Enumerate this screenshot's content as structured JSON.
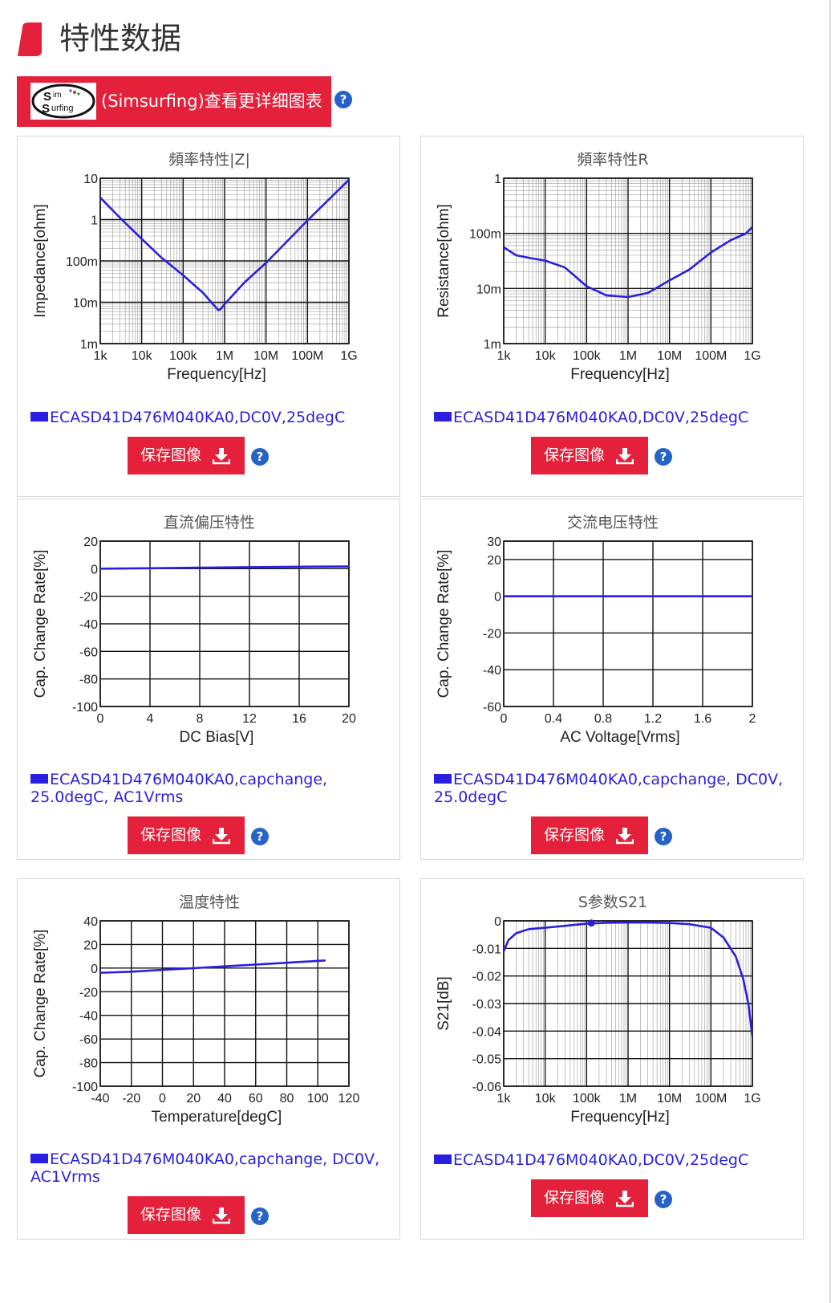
{
  "page": {
    "title": "特性数据",
    "colors": {
      "accent": "#e4203a",
      "series": "#2a1fe0",
      "help": "#2563c9"
    }
  },
  "simsurfing": {
    "label": "(Simsurfing)查看更详细图表",
    "logo_text": "Sim Surfing",
    "help_icon": "question-circle-icon"
  },
  "buttons": {
    "save_label": "保存图像",
    "save_icon": "download-icon",
    "help_text": "?"
  },
  "panels": [
    {
      "title": "頻率特性|Z|",
      "legend": "ECASD41D476M040KA0,DC0V,25degC"
    },
    {
      "title": "頻率特性R",
      "legend": "ECASD41D476M040KA0,DC0V,25degC"
    },
    {
      "title": "直流偏压特性",
      "legend_line1": "ECASD41D476M040KA0,capchange,",
      "legend_line2": "25.0degC, AC1Vrms"
    },
    {
      "title": "交流电压特性",
      "legend_line1": "ECASD41D476M040KA0,capchange, DC0V,",
      "legend_line2": "25.0degC"
    },
    {
      "title": "温度特性",
      "legend_line1": "ECASD41D476M040KA0,capchange, DC0V,",
      "legend_line2": "AC1Vrms"
    },
    {
      "title": "S参数S21",
      "legend": "ECASD41D476M040KA0,DC0V,25degC"
    }
  ],
  "chart_data": [
    {
      "type": "line",
      "title": "頻率特性|Z|",
      "xlabel": "Frequency[Hz]",
      "ylabel": "Impedance[ohm]",
      "xscale": "log",
      "yscale": "log",
      "xlim": [
        1000,
        1000000000
      ],
      "ylim": [
        0.001,
        10
      ],
      "xticks": [
        {
          "v": 1000,
          "l": "1k"
        },
        {
          "v": 10000,
          "l": "10k"
        },
        {
          "v": 100000,
          "l": "100k"
        },
        {
          "v": 1000000,
          "l": "1M"
        },
        {
          "v": 10000000,
          "l": "10M"
        },
        {
          "v": 100000000,
          "l": "100M"
        },
        {
          "v": 1000000000,
          "l": "1G"
        }
      ],
      "yticks": [
        {
          "v": 0.001,
          "l": "1m"
        },
        {
          "v": 0.01,
          "l": "10m"
        },
        {
          "v": 0.1,
          "l": "100m"
        },
        {
          "v": 1,
          "l": "1"
        },
        {
          "v": 10,
          "l": "10"
        }
      ],
      "grid": true,
      "minor_grid": true,
      "series": [
        {
          "name": "ECASD41D476M040KA0,DC0V,25degC",
          "x": [
            1000,
            3000,
            10000,
            30000,
            100000,
            300000,
            500000,
            700000,
            800000,
            1000000,
            3000000,
            10000000,
            100000000,
            1000000000
          ],
          "y": [
            3.4,
            1.1,
            0.34,
            0.12,
            0.045,
            0.017,
            0.0095,
            0.0065,
            0.0068,
            0.009,
            0.03,
            0.09,
            0.95,
            9.2
          ]
        }
      ]
    },
    {
      "type": "line",
      "title": "頻率特性R",
      "xlabel": "Frequency[Hz]",
      "ylabel": "Resistance[ohm]",
      "xscale": "log",
      "yscale": "log",
      "xlim": [
        1000,
        1000000000
      ],
      "ylim": [
        0.001,
        1
      ],
      "xticks": [
        {
          "v": 1000,
          "l": "1k"
        },
        {
          "v": 10000,
          "l": "10k"
        },
        {
          "v": 100000,
          "l": "100k"
        },
        {
          "v": 1000000,
          "l": "1M"
        },
        {
          "v": 10000000,
          "l": "10M"
        },
        {
          "v": 100000000,
          "l": "100M"
        },
        {
          "v": 1000000000,
          "l": "1G"
        }
      ],
      "yticks": [
        {
          "v": 0.001,
          "l": "1m"
        },
        {
          "v": 0.01,
          "l": "10m"
        },
        {
          "v": 0.1,
          "l": "100m"
        },
        {
          "v": 1,
          "l": "1"
        }
      ],
      "grid": true,
      "minor_grid": true,
      "series": [
        {
          "name": "ECASD41D476M040KA0,DC0V,25degC",
          "x": [
            1000,
            2000,
            5000,
            10000,
            30000,
            100000,
            300000,
            1000000,
            3000000,
            10000000,
            30000000,
            100000000,
            300000000,
            700000000,
            1000000000
          ],
          "y": [
            0.056,
            0.04,
            0.035,
            0.032,
            0.024,
            0.011,
            0.0075,
            0.007,
            0.0083,
            0.014,
            0.022,
            0.045,
            0.075,
            0.1,
            0.13
          ]
        }
      ]
    },
    {
      "type": "line",
      "title": "直流偏压特性",
      "xlabel": "DC Bias[V]",
      "ylabel": "Cap. Change Rate[%]",
      "xlim": [
        0,
        20
      ],
      "ylim": [
        -100,
        20
      ],
      "xticks": [
        {
          "v": 0,
          "l": "0"
        },
        {
          "v": 4,
          "l": "4"
        },
        {
          "v": 8,
          "l": "8"
        },
        {
          "v": 12,
          "l": "12"
        },
        {
          "v": 16,
          "l": "16"
        },
        {
          "v": 20,
          "l": "20"
        }
      ],
      "yticks": [
        {
          "v": -100,
          "l": "-100"
        },
        {
          "v": -80,
          "l": "-80"
        },
        {
          "v": -60,
          "l": "-60"
        },
        {
          "v": -40,
          "l": "-40"
        },
        {
          "v": -20,
          "l": "-20"
        },
        {
          "v": 0,
          "l": "0"
        },
        {
          "v": 20,
          "l": "20"
        }
      ],
      "grid": true,
      "series": [
        {
          "name": "ECASD41D476M040KA0,capchange, 25.0degC, AC1Vrms",
          "x": [
            0,
            4,
            8,
            12,
            16,
            20
          ],
          "y": [
            0,
            0.3,
            0.7,
            1.1,
            1.4,
            1.6
          ]
        }
      ]
    },
    {
      "type": "line",
      "title": "交流电压特性",
      "xlabel": "AC Voltage[Vrms]",
      "ylabel": "Cap. Change Rate[%]",
      "xlim": [
        0,
        2
      ],
      "ylim": [
        -60,
        30
      ],
      "xticks": [
        {
          "v": 0,
          "l": "0"
        },
        {
          "v": 0.4,
          "l": "0.4"
        },
        {
          "v": 0.8,
          "l": "0.8"
        },
        {
          "v": 1.2,
          "l": "1.2"
        },
        {
          "v": 1.6,
          "l": "1.6"
        },
        {
          "v": 2,
          "l": "2"
        }
      ],
      "yticks": [
        {
          "v": -60,
          "l": "-60"
        },
        {
          "v": -40,
          "l": "-40"
        },
        {
          "v": -20,
          "l": "-20"
        },
        {
          "v": 0,
          "l": "0"
        },
        {
          "v": 20,
          "l": "20"
        },
        {
          "v": 30,
          "l": "30"
        }
      ],
      "grid": true,
      "series": [
        {
          "name": "ECASD41D476M040KA0,capchange, DC0V, 25.0degC",
          "x": [
            0,
            0.4,
            0.8,
            1.2,
            1.6,
            2
          ],
          "y": [
            0,
            0,
            0,
            0,
            0,
            0
          ]
        }
      ]
    },
    {
      "type": "line",
      "title": "温度特性",
      "xlabel": "Temperature[degC]",
      "ylabel": "Cap. Change Rate[%]",
      "xlim": [
        -40,
        120
      ],
      "ylim": [
        -100,
        40
      ],
      "xticks": [
        {
          "v": -40,
          "l": "-40"
        },
        {
          "v": -20,
          "l": "-20"
        },
        {
          "v": 0,
          "l": "0"
        },
        {
          "v": 20,
          "l": "20"
        },
        {
          "v": 40,
          "l": "40"
        },
        {
          "v": 60,
          "l": "60"
        },
        {
          "v": 80,
          "l": "80"
        },
        {
          "v": 100,
          "l": "100"
        },
        {
          "v": 120,
          "l": "120"
        }
      ],
      "yticks": [
        {
          "v": -100,
          "l": "-100"
        },
        {
          "v": -80,
          "l": "-80"
        },
        {
          "v": -60,
          "l": "-60"
        },
        {
          "v": -40,
          "l": "-40"
        },
        {
          "v": -20,
          "l": "-20"
        },
        {
          "v": 0,
          "l": "0"
        },
        {
          "v": 20,
          "l": "20"
        },
        {
          "v": 40,
          "l": "40"
        }
      ],
      "grid": true,
      "series": [
        {
          "name": "ECASD41D476M040KA0,capchange, DC0V, AC1Vrms",
          "x": [
            -40,
            -20,
            0,
            20,
            40,
            60,
            80,
            105
          ],
          "y": [
            -4,
            -3,
            -1.5,
            0,
            1.5,
            3,
            4.5,
            6.5
          ]
        }
      ]
    },
    {
      "type": "line",
      "title": "S参数S21",
      "xlabel": "Frequency[Hz]",
      "ylabel": "S21[dB]",
      "xscale": "log",
      "xlim": [
        1000,
        1000000000
      ],
      "ylim": [
        -0.06,
        0
      ],
      "xticks": [
        {
          "v": 1000,
          "l": "1k"
        },
        {
          "v": 10000,
          "l": "10k"
        },
        {
          "v": 100000,
          "l": "100k"
        },
        {
          "v": 1000000,
          "l": "1M"
        },
        {
          "v": 10000000,
          "l": "10M"
        },
        {
          "v": 100000000,
          "l": "100M"
        },
        {
          "v": 1000000000,
          "l": "1G"
        }
      ],
      "yticks": [
        {
          "v": -0.06,
          "l": "-0.06"
        },
        {
          "v": -0.05,
          "l": "-0.05"
        },
        {
          "v": -0.04,
          "l": "-0.04"
        },
        {
          "v": -0.03,
          "l": "-0.03"
        },
        {
          "v": -0.02,
          "l": "-0.02"
        },
        {
          "v": -0.01,
          "l": "-0.01"
        },
        {
          "v": 0,
          "l": "0"
        }
      ],
      "grid": true,
      "minor_grid": true,
      "marker": {
        "x": 130000,
        "y": -0.0008
      },
      "series": [
        {
          "name": "ECASD41D476M040KA0,DC0V,25degC",
          "x": [
            1000,
            1300,
            2000,
            4000,
            10000,
            30000,
            100000,
            300000,
            1000000,
            3000000,
            10000000,
            30000000,
            100000000,
            200000000,
            400000000,
            600000000,
            800000000,
            1000000000
          ],
          "y": [
            -0.011,
            -0.007,
            -0.0045,
            -0.003,
            -0.0025,
            -0.0018,
            -0.001,
            -0.0007,
            -0.0006,
            -0.0006,
            -0.0008,
            -0.0012,
            -0.0025,
            -0.006,
            -0.013,
            -0.021,
            -0.03,
            -0.042
          ]
        }
      ]
    }
  ]
}
